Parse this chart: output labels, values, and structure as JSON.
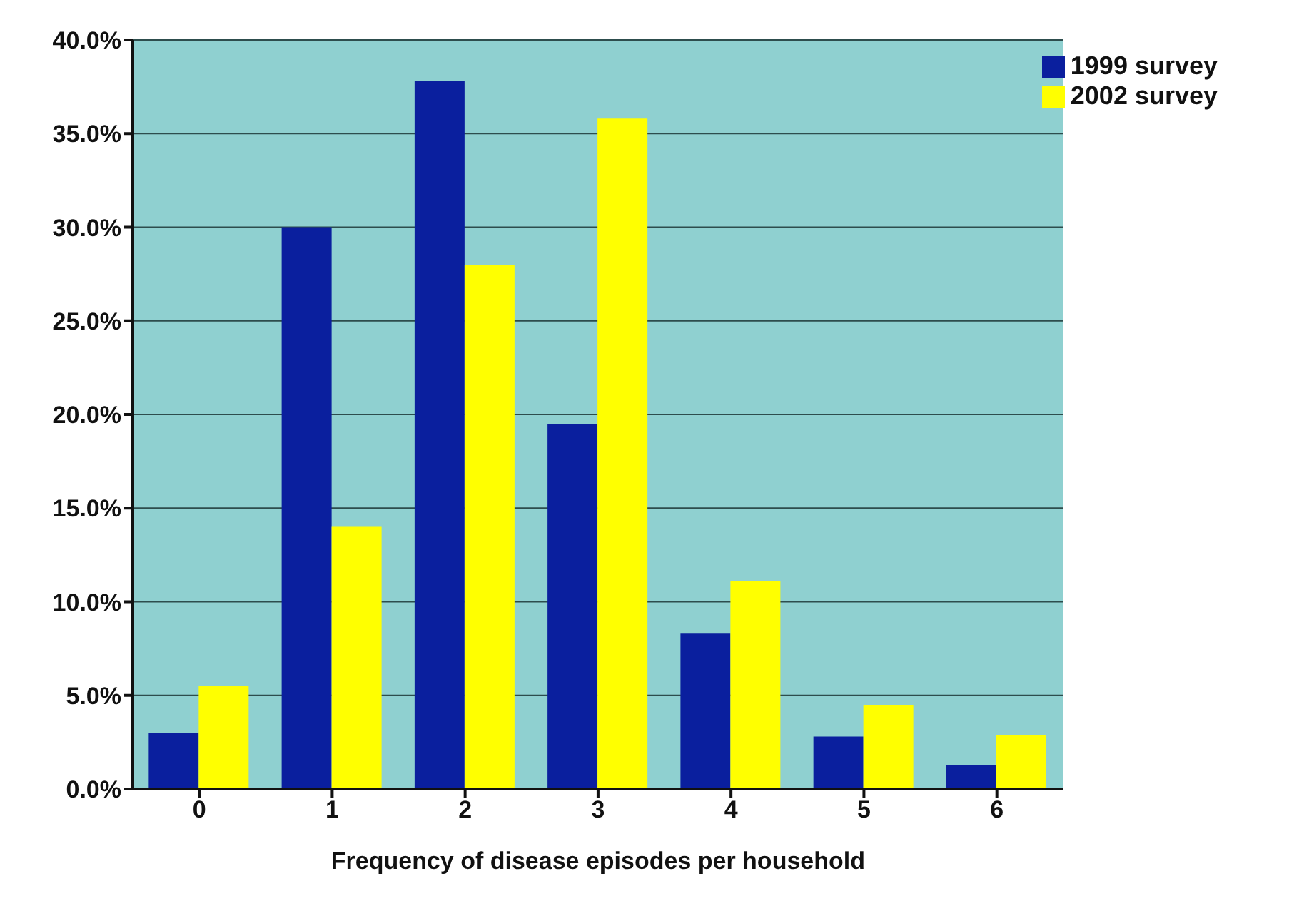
{
  "chart_data": {
    "type": "bar",
    "xlabel": "Frequency of disease episodes per household",
    "categories": [
      "0",
      "1",
      "2",
      "3",
      "4",
      "5",
      "6"
    ],
    "series": [
      {
        "name": "1999 survey",
        "color": "#0a1f9e",
        "values": [
          3.0,
          30.0,
          37.8,
          19.5,
          8.3,
          2.8,
          1.3
        ]
      },
      {
        "name": "2002 survey",
        "color": "#ffff00",
        "values": [
          5.5,
          14.0,
          28.0,
          35.8,
          11.1,
          4.5,
          2.9
        ]
      }
    ],
    "ylim": [
      0,
      40
    ],
    "yticks": [
      {
        "value": 0,
        "label": "0.0%"
      },
      {
        "value": 5,
        "label": "5.0%"
      },
      {
        "value": 10,
        "label": "10.0%"
      },
      {
        "value": 15,
        "label": "15.0%"
      },
      {
        "value": 20,
        "label": "20.0%"
      },
      {
        "value": 25,
        "label": "25.0%"
      },
      {
        "value": 30,
        "label": "30.0%"
      },
      {
        "value": 35,
        "label": "35.0%"
      },
      {
        "value": 40,
        "label": "40.0%"
      }
    ],
    "grid": "y",
    "legend": "top right"
  }
}
